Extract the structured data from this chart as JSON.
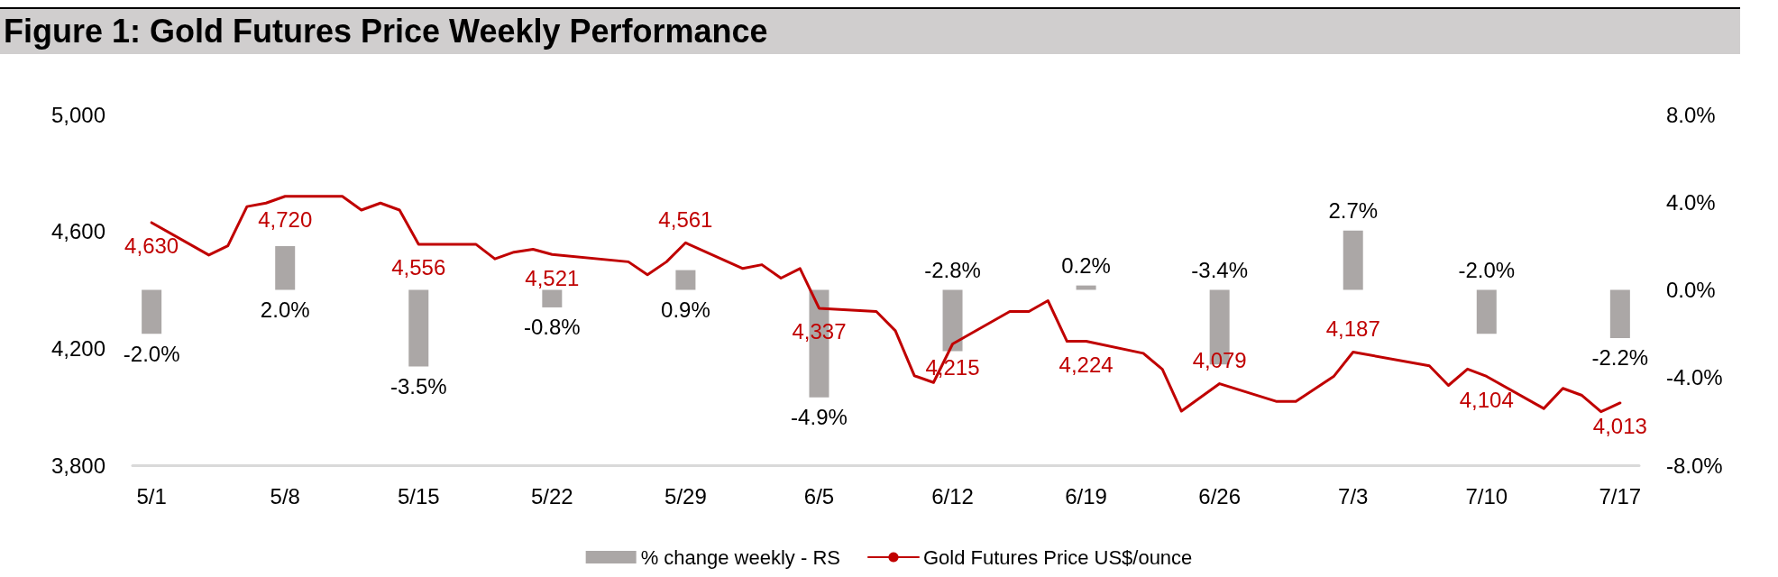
{
  "chart_data": {
    "type": "line",
    "title": "Figure 1: Gold Futures Price Weekly Performance",
    "xlim": [
      "--04-30",
      "--07-18"
    ],
    "xticks": [
      {
        "value": "--05-01",
        "label": "5/1"
      },
      {
        "value": "--05-08",
        "label": "5/8"
      },
      {
        "value": "--05-15",
        "label": "5/15"
      },
      {
        "value": "--05-22",
        "label": "5/22"
      },
      {
        "value": "--05-29",
        "label": "5/29"
      },
      {
        "value": "--06-05",
        "label": "6/5"
      },
      {
        "value": "--06-12",
        "label": "6/12"
      },
      {
        "value": "--06-19",
        "label": "6/19"
      },
      {
        "value": "--06-26",
        "label": "6/26"
      },
      {
        "value": "--07-03",
        "label": "7/3"
      },
      {
        "value": "--07-10",
        "label": "7/10"
      },
      {
        "value": "--07-17",
        "label": "7/17"
      }
    ],
    "ylim": [
      3800,
      5000
    ],
    "yticks": [
      {
        "value": 3800,
        "label": "3,800"
      },
      {
        "value": 4200,
        "label": "4,200"
      },
      {
        "value": 4600,
        "label": "4,600"
      },
      {
        "value": 5000,
        "label": "5,000"
      }
    ],
    "y2lim": [
      -8,
      8
    ],
    "y2ticks": [
      {
        "value": -8,
        "label": "-8.0%"
      },
      {
        "value": -4,
        "label": "-4.0%"
      },
      {
        "value": 0,
        "label": "0.0%"
      },
      {
        "value": 4,
        "label": "4.0%"
      },
      {
        "value": 8,
        "label": "8.0%"
      }
    ],
    "grid": false,
    "legend": "bottom",
    "marker": "none",
    "line_style": "solid",
    "series": [
      {
        "name": "% change weekly - RS",
        "type": "bar",
        "axis": "y2",
        "color": "#aba7a6",
        "x": [
          "--05-01",
          "--05-08",
          "--05-15",
          "--05-22",
          "--05-29",
          "--06-05",
          "--06-12",
          "--06-19",
          "--06-26",
          "--07-03",
          "--07-10",
          "--07-17"
        ],
        "values": [
          -2.0,
          2.0,
          -3.5,
          -0.8,
          0.9,
          -4.9,
          -2.8,
          0.2,
          -3.4,
          2.7,
          -2.0,
          -2.2
        ],
        "value_labels": [
          "-2.0%",
          "2.0%",
          "-3.5%",
          "-0.8%",
          "0.9%",
          "-4.9%",
          "-2.8%",
          "0.2%",
          "-3.4%",
          "2.7%",
          "-2.0%",
          "-2.2%"
        ]
      },
      {
        "name": "Gold Futures Price US$/ounce",
        "color": "#c00000",
        "x": [
          "--05-01",
          "--05-04",
          "--05-05",
          "--05-06",
          "--05-07",
          "--05-08",
          "--05-11",
          "--05-12",
          "--05-13",
          "--05-14",
          "--05-15",
          "--05-18",
          "--05-19",
          "--05-20",
          "--05-21",
          "--05-22",
          "--05-26",
          "--05-27",
          "--05-28",
          "--05-29",
          "--06-01",
          "--06-02",
          "--06-03",
          "--06-04",
          "--06-05",
          "--06-08",
          "--06-09",
          "--06-10",
          "--06-11",
          "--06-12",
          "--06-15",
          "--06-16",
          "--06-17",
          "--06-18",
          "--06-19",
          "--06-22",
          "--06-23",
          "--06-24",
          "--06-26",
          "--06-29",
          "--06-30",
          "--07-02",
          "--07-03",
          "--07-07",
          "--07-08",
          "--07-09",
          "--07-10",
          "--07-13",
          "--07-14",
          "--07-15",
          "--07-16",
          "--07-17"
        ],
        "values": [
          4630,
          4519,
          4551,
          4685,
          4697,
          4720,
          4720,
          4673,
          4697,
          4673,
          4556,
          4556,
          4506,
          4529,
          4539,
          4521,
          4496,
          4452,
          4496,
          4561,
          4473,
          4486,
          4440,
          4473,
          4337,
          4326,
          4260,
          4106,
          4083,
          4215,
          4326,
          4326,
          4363,
          4224,
          4224,
          4183,
          4128,
          3985,
          4079,
          4018,
          4018,
          4105,
          4187,
          4140,
          4073,
          4129,
          4104,
          3994,
          4063,
          4039,
          3983,
          4013
        ],
        "value_labels": [
          "4,630",
          null,
          null,
          null,
          null,
          "4,720",
          null,
          null,
          null,
          null,
          "4,556",
          null,
          null,
          null,
          null,
          "4,521",
          null,
          null,
          null,
          "4,561",
          null,
          null,
          null,
          null,
          "4,337",
          null,
          null,
          null,
          null,
          "4,215",
          null,
          null,
          null,
          null,
          "4,224",
          null,
          null,
          null,
          "4,079",
          null,
          null,
          null,
          "4,187",
          null,
          null,
          null,
          "4,104",
          null,
          null,
          null,
          null,
          "4,013"
        ]
      }
    ]
  }
}
